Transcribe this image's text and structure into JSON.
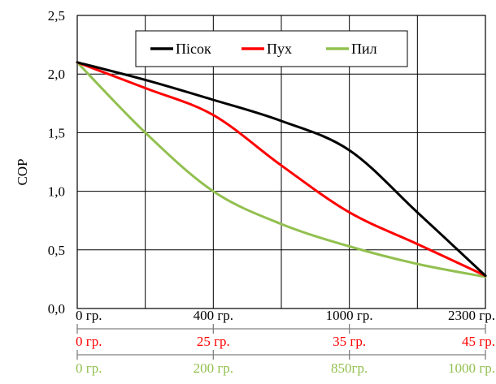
{
  "chart_data": {
    "type": "line",
    "ylabel": "СОР",
    "ylim": [
      0,
      2.5
    ],
    "y_ticks": [
      "0,0",
      "0,5",
      "1,0",
      "1,5",
      "2,0",
      "2,5"
    ],
    "x_domain": [
      0,
      6
    ],
    "legend_position": "top-center",
    "grid": true,
    "series": [
      {
        "name": "Пісок",
        "color": "#000000",
        "points": [
          [
            0,
            2.1
          ],
          [
            1,
            1.95
          ],
          [
            2,
            1.78
          ],
          [
            3,
            1.6
          ],
          [
            4,
            1.35
          ],
          [
            5,
            0.82
          ],
          [
            6,
            0.28
          ]
        ]
      },
      {
        "name": "Пух",
        "color": "#ff0000",
        "points": [
          [
            0,
            2.1
          ],
          [
            1,
            1.88
          ],
          [
            2,
            1.65
          ],
          [
            3,
            1.22
          ],
          [
            4,
            0.82
          ],
          [
            5,
            0.55
          ],
          [
            6,
            0.28
          ]
        ]
      },
      {
        "name": "Пил",
        "color": "#92c050",
        "points": [
          [
            0,
            2.1
          ],
          [
            1,
            1.5
          ],
          [
            2,
            1.0
          ],
          [
            3,
            0.72
          ],
          [
            4,
            0.53
          ],
          [
            5,
            0.38
          ],
          [
            6,
            0.27
          ]
        ]
      }
    ],
    "scales": [
      {
        "color": "#000000",
        "labels": [
          {
            "x": 0,
            "text": "0 гр."
          },
          {
            "x": 2,
            "text": "400 гр."
          },
          {
            "x": 4,
            "text": "1000 гр."
          },
          {
            "x": 6,
            "text": "2300 гр."
          }
        ]
      },
      {
        "color": "#ff0000",
        "labels": [
          {
            "x": 0,
            "text": "0 гр."
          },
          {
            "x": 2,
            "text": "25 гр."
          },
          {
            "x": 4,
            "text": "35 гр."
          },
          {
            "x": 6,
            "text": "45 гр."
          }
        ]
      },
      {
        "color": "#92c050",
        "labels": [
          {
            "x": 0,
            "text": "0 гр."
          },
          {
            "x": 2,
            "text": "200 гр."
          },
          {
            "x": 4,
            "text": "850гр."
          },
          {
            "x": 6,
            "text": "1000 гр."
          }
        ]
      }
    ]
  }
}
